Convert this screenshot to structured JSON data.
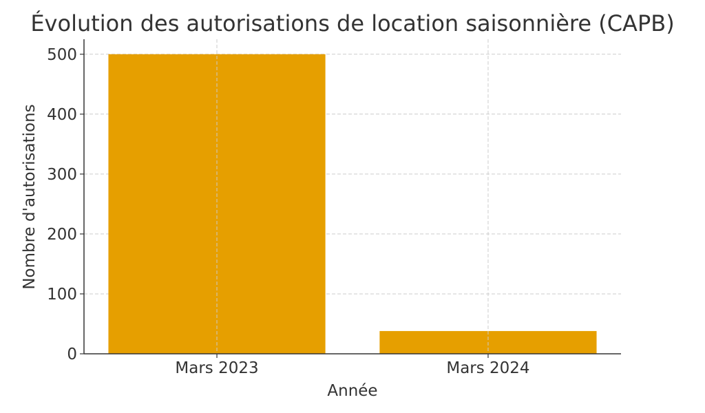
{
  "chart_data": {
    "type": "bar",
    "title": "Évolution des autorisations de location saisonnière (CAPB)",
    "xlabel": "Année",
    "ylabel": "Nombre d'autorisations",
    "categories": [
      "Mars 2023",
      "Mars 2024"
    ],
    "values": [
      500,
      38
    ],
    "ylim": [
      0,
      525
    ],
    "yticks": [
      0,
      100,
      200,
      300,
      400,
      500
    ],
    "grid": true,
    "bar_color": "#E69F00"
  }
}
